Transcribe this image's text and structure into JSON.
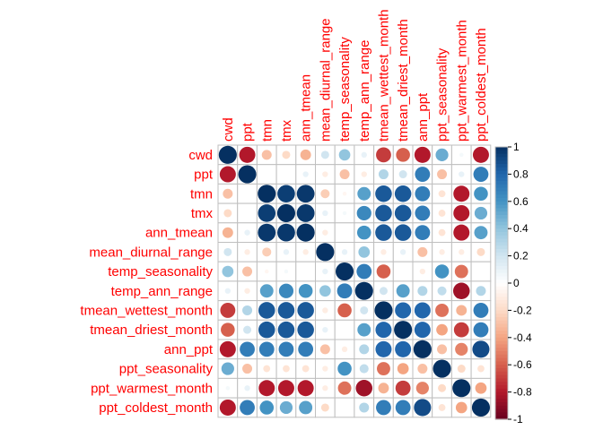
{
  "chart_data": {
    "type": "heatmap",
    "title": "",
    "variables": [
      "cwd",
      "ppt",
      "tmn",
      "tmx",
      "ann_tmean",
      "mean_diurnal_range",
      "temp_seasonality",
      "temp_ann_range",
      "tmean_wettest_month",
      "tmean_driest_month",
      "ann_ppt",
      "ppt_seasonality",
      "ppt_warmest_month",
      "ppt_coldest_month"
    ],
    "matrix": [
      [
        1.0,
        -0.8,
        -0.3,
        -0.2,
        -0.35,
        0.2,
        0.4,
        0.1,
        -0.7,
        -0.6,
        -0.8,
        0.5,
        0.05,
        -0.8
      ],
      [
        -0.8,
        1.0,
        0.0,
        0.0,
        0.1,
        -0.1,
        -0.3,
        -0.1,
        0.3,
        0.2,
        0.7,
        -0.3,
        0.1,
        0.7
      ],
      [
        -0.3,
        0.0,
        1.0,
        0.95,
        0.97,
        -0.25,
        -0.05,
        0.55,
        0.85,
        0.85,
        0.7,
        -0.15,
        -0.8,
        0.6
      ],
      [
        -0.2,
        0.0,
        0.95,
        1.0,
        0.97,
        0.1,
        0.05,
        0.65,
        0.85,
        0.85,
        0.7,
        -0.15,
        -0.8,
        0.5
      ],
      [
        -0.35,
        0.1,
        0.97,
        0.97,
        1.0,
        -0.1,
        0.0,
        0.6,
        0.85,
        0.85,
        0.7,
        -0.15,
        -0.8,
        0.55
      ],
      [
        0.2,
        -0.1,
        -0.25,
        0.1,
        -0.1,
        1.0,
        0.1,
        0.4,
        -0.1,
        0.1,
        -0.3,
        -0.1,
        -0.1,
        -0.2
      ],
      [
        0.4,
        -0.3,
        -0.05,
        0.05,
        0.0,
        0.1,
        1.0,
        0.7,
        -0.6,
        0.0,
        -0.1,
        0.6,
        -0.55,
        0.0
      ],
      [
        0.1,
        -0.1,
        0.55,
        0.65,
        0.6,
        0.4,
        0.7,
        1.0,
        0.2,
        0.55,
        0.3,
        0.25,
        -0.85,
        0.3
      ],
      [
        -0.7,
        0.3,
        0.85,
        0.85,
        0.85,
        -0.1,
        -0.6,
        0.2,
        1.0,
        0.8,
        0.8,
        -0.55,
        -0.35,
        0.7
      ],
      [
        -0.6,
        0.2,
        0.85,
        0.85,
        0.85,
        0.1,
        0.0,
        0.55,
        0.8,
        1.0,
        0.8,
        -0.4,
        -0.7,
        0.7
      ],
      [
        -0.8,
        0.7,
        0.7,
        0.7,
        0.7,
        -0.3,
        -0.1,
        0.3,
        0.8,
        0.8,
        1.0,
        -0.3,
        -0.5,
        0.9
      ],
      [
        0.5,
        -0.3,
        -0.15,
        -0.15,
        -0.15,
        -0.1,
        0.6,
        0.25,
        -0.55,
        -0.4,
        -0.3,
        1.0,
        -0.2,
        -0.15
      ],
      [
        0.05,
        0.1,
        -0.8,
        -0.8,
        -0.8,
        -0.1,
        -0.55,
        -0.85,
        -0.35,
        -0.7,
        -0.5,
        -0.2,
        1.0,
        -0.4
      ],
      [
        -0.8,
        0.7,
        0.6,
        0.5,
        0.55,
        -0.2,
        0.0,
        0.3,
        0.7,
        0.7,
        0.9,
        -0.15,
        -0.4,
        1.0
      ]
    ],
    "colorbar": {
      "range": [
        -1,
        1
      ],
      "ticks": [
        "1",
        "0.8",
        "0.6",
        "0.4",
        "0.2",
        "0",
        "-0.2",
        "-0.4",
        "-0.6",
        "-0.8",
        "-1"
      ]
    },
    "colors": {
      "label": "#ff0000",
      "grid": "#bfbfbf",
      "scale": [
        "#67001f",
        "#b2182b",
        "#d6604d",
        "#f4a582",
        "#fddbc7",
        "#ffffff",
        "#d1e5f0",
        "#92c5de",
        "#4393c3",
        "#2166ac",
        "#053061"
      ]
    }
  }
}
